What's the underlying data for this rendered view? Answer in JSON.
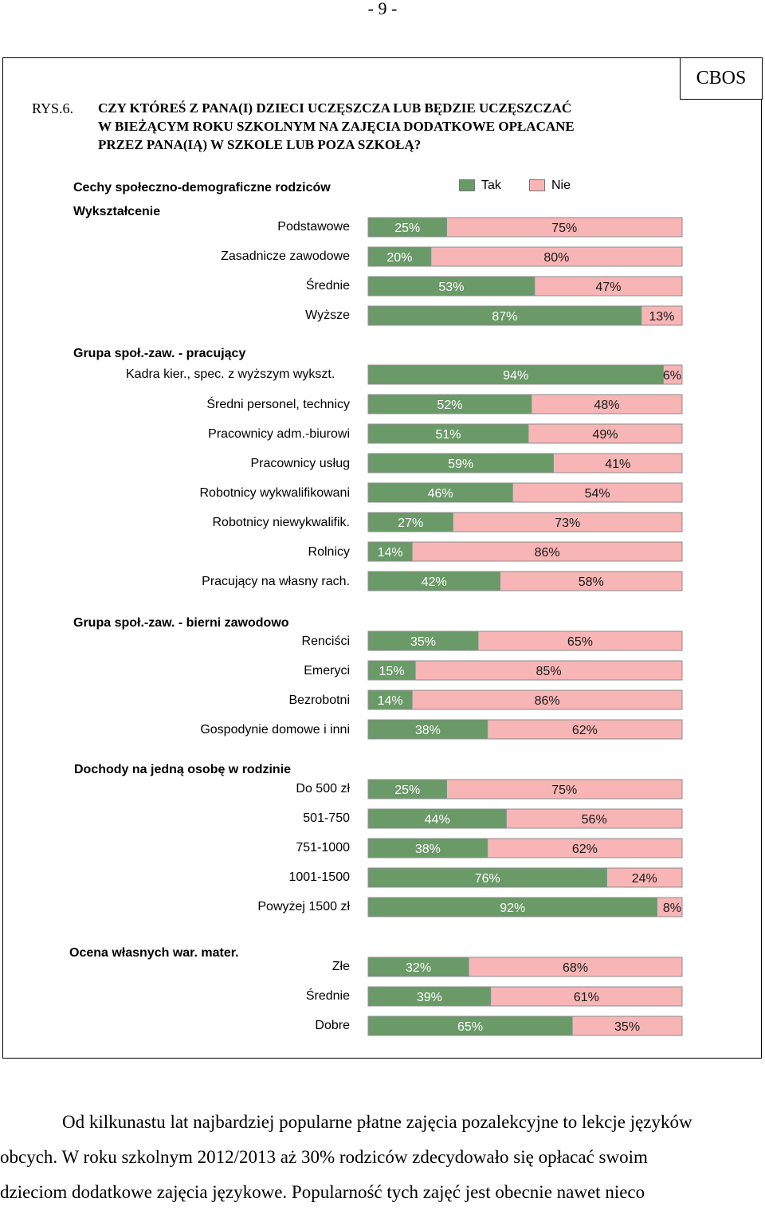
{
  "page": {
    "number": "- 9 -",
    "source": "CBOS"
  },
  "figure": {
    "label": "RYS.6.",
    "question": [
      "CZY KTÓREŚ Z PANA(I) DZIECI UCZĘSZCZA LUB BĘDZIE UCZĘSZCZAĆ",
      "W BIEŻĄCYM ROKU SZKOLNYM NA ZAJĘCIA DODATKOWE OPŁACANE",
      "PRZEZ PANA(IĄ) W SZKOLE LUB POZA SZKOŁĄ?"
    ],
    "header": "Cechy społeczno-demograficzne rodziców"
  },
  "colors": {
    "tak": "#6a9a67",
    "nie": "#f7b5b5",
    "border": "#8c8c8c"
  },
  "chart_data": {
    "type": "bar",
    "stacked": true,
    "orientation": "horizontal",
    "legend": [
      {
        "name": "Tak",
        "color": "#6a9a67"
      },
      {
        "name": "Nie",
        "color": "#f7b5b5"
      }
    ],
    "groups": [
      {
        "title": "Wykształcenie",
        "subtitle": "",
        "rows": [
          {
            "label": "Podstawowe",
            "tak": 25,
            "nie": 75,
            "tak_label": "25%",
            "nie_label": "75%"
          },
          {
            "label": "Zasadnicze zawodowe",
            "tak": 20,
            "nie": 80,
            "tak_label": "20%",
            "nie_label": "80%"
          },
          {
            "label": "Średnie",
            "tak": 53,
            "nie": 47,
            "tak_label": "53%",
            "nie_label": "47%"
          },
          {
            "label": "Wyższe",
            "tak": 87,
            "nie": 13,
            "tak_label": "87%",
            "nie_label": "13%"
          }
        ]
      },
      {
        "title": "Grupa społ.-zaw. - pracujący",
        "subtitle": "Kadra kier., spec. z wyższym wykszt.",
        "rows": [
          {
            "label": "",
            "tak": 94,
            "nie": 6,
            "tak_label": "94%",
            "nie_label": "6%"
          },
          {
            "label": "Średni personel, technicy",
            "tak": 52,
            "nie": 48,
            "tak_label": "52%",
            "nie_label": "48%"
          },
          {
            "label": "Pracownicy adm.-biurowi",
            "tak": 51,
            "nie": 49,
            "tak_label": "51%",
            "nie_label": "49%"
          },
          {
            "label": "Pracownicy usług",
            "tak": 59,
            "nie": 41,
            "tak_label": "59%",
            "nie_label": "41%"
          },
          {
            "label": "Robotnicy wykwalifikowani",
            "tak": 46,
            "nie": 54,
            "tak_label": "46%",
            "nie_label": "54%"
          },
          {
            "label": "Robotnicy niewykwalifik.",
            "tak": 27,
            "nie": 73,
            "tak_label": "27%",
            "nie_label": "73%"
          },
          {
            "label": "Rolnicy",
            "tak": 14,
            "nie": 86,
            "tak_label": "14%",
            "nie_label": "86%"
          },
          {
            "label": "Pracujący na własny rach.",
            "tak": 42,
            "nie": 58,
            "tak_label": "42%",
            "nie_label": "58%"
          }
        ]
      },
      {
        "title": "Grupa społ.-zaw. - bierni zawodowo",
        "subtitle": "",
        "rows": [
          {
            "label": "Renciści",
            "tak": 35,
            "nie": 65,
            "tak_label": "35%",
            "nie_label": "65%"
          },
          {
            "label": "Emeryci",
            "tak": 15,
            "nie": 85,
            "tak_label": "15%",
            "nie_label": "85%"
          },
          {
            "label": "Bezrobotni",
            "tak": 14,
            "nie": 86,
            "tak_label": "14%",
            "nie_label": "86%"
          },
          {
            "label": "Gospodynie domowe i inni",
            "tak": 38,
            "nie": 62,
            "tak_label": "38%",
            "nie_label": "62%"
          }
        ]
      },
      {
        "title": "Dochody na jedną osobę w rodzinie",
        "subtitle": "",
        "rows": [
          {
            "label": "Do 500 zł",
            "tak": 25,
            "nie": 75,
            "tak_label": "25%",
            "nie_label": "75%"
          },
          {
            "label": "501-750",
            "tak": 44,
            "nie": 56,
            "tak_label": "44%",
            "nie_label": "56%"
          },
          {
            "label": "751-1000",
            "tak": 38,
            "nie": 62,
            "tak_label": "38%",
            "nie_label": "62%"
          },
          {
            "label": "1001-1500",
            "tak": 76,
            "nie": 24,
            "tak_label": "76%",
            "nie_label": "24%"
          },
          {
            "label": "Powyżej 1500 zł",
            "tak": 92,
            "nie": 8,
            "tak_label": "92%",
            "nie_label": "8%"
          }
        ]
      },
      {
        "title": "Ocena własnych war. mater.",
        "subtitle": "",
        "rows": [
          {
            "label": "Złe",
            "tak": 32,
            "nie": 68,
            "tak_label": "32%",
            "nie_label": "68%"
          },
          {
            "label": "Średnie",
            "tak": 39,
            "nie": 61,
            "tak_label": "39%",
            "nie_label": "61%"
          },
          {
            "label": "Dobre",
            "tak": 65,
            "nie": 35,
            "tak_label": "65%",
            "nie_label": "35%"
          }
        ]
      }
    ]
  },
  "body_text": {
    "line1": "Od kilkunastu lat najbardziej popularne płatne zajęcia pozalekcyjne to lekcje języków",
    "line2": "obcych. W roku szkolnym 2012/2013 aż 30% rodziców zdecydowało się opłacać swoim",
    "line3": "dzieciom dodatkowe zajęcia językowe. Popularność tych zajęć jest obecnie nawet nieco"
  }
}
